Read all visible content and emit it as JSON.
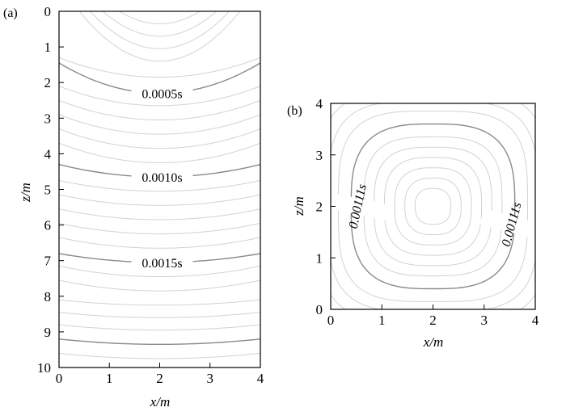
{
  "chart_data": [
    {
      "type": "contour",
      "panel_label": "(a)",
      "xlabel": "x/m",
      "ylabel": "z/m",
      "xlim": [
        0,
        4
      ],
      "ylim": [
        0,
        10
      ],
      "y_inverted": true,
      "x_ticks": [
        "0",
        "1",
        "2",
        "3",
        "4"
      ],
      "y_ticks": [
        "0",
        "1",
        "2",
        "3",
        "4",
        "5",
        "6",
        "7",
        "8",
        "9",
        "10"
      ],
      "source": {
        "x": 2,
        "z": 0
      },
      "labeled_contours": [
        {
          "label": "0.0005s",
          "center_depth": 2.3,
          "edge_depth": 1.45
        },
        {
          "label": "0.0010s",
          "center_depth": 4.65,
          "edge_depth": 4.3
        },
        {
          "label": "0.0015s",
          "center_depth": 7.05,
          "edge_depth": 6.8
        },
        {
          "label": "",
          "center_depth": 9.35,
          "edge_depth": 9.2
        }
      ],
      "light_contour_depths": [
        0.35,
        0.7,
        1.05,
        1.4,
        1.85,
        2.65,
        3.05,
        3.45,
        3.85,
        4.25,
        5.05,
        5.45,
        5.85,
        6.25,
        6.65,
        7.45,
        7.85,
        8.25,
        8.6,
        8.95,
        9.75
      ]
    },
    {
      "type": "contour",
      "panel_label": "(b)",
      "xlabel": "x/m",
      "ylabel": "z/m",
      "xlim": [
        0,
        4
      ],
      "ylim": [
        0,
        4
      ],
      "x_ticks": [
        "0",
        "1",
        "2",
        "3",
        "4"
      ],
      "y_ticks": [
        "0",
        "1",
        "2",
        "3",
        "4"
      ],
      "center": {
        "x": 2,
        "z": 2
      },
      "labeled_contours": [
        {
          "label": "0.00111s",
          "half_width": 1.6,
          "squareness": 3.0
        }
      ],
      "light_contour_half_widths": [
        0.35,
        0.55,
        0.75,
        0.95,
        1.15,
        1.35,
        1.85,
        2.05,
        2.25,
        2.45
      ]
    }
  ]
}
